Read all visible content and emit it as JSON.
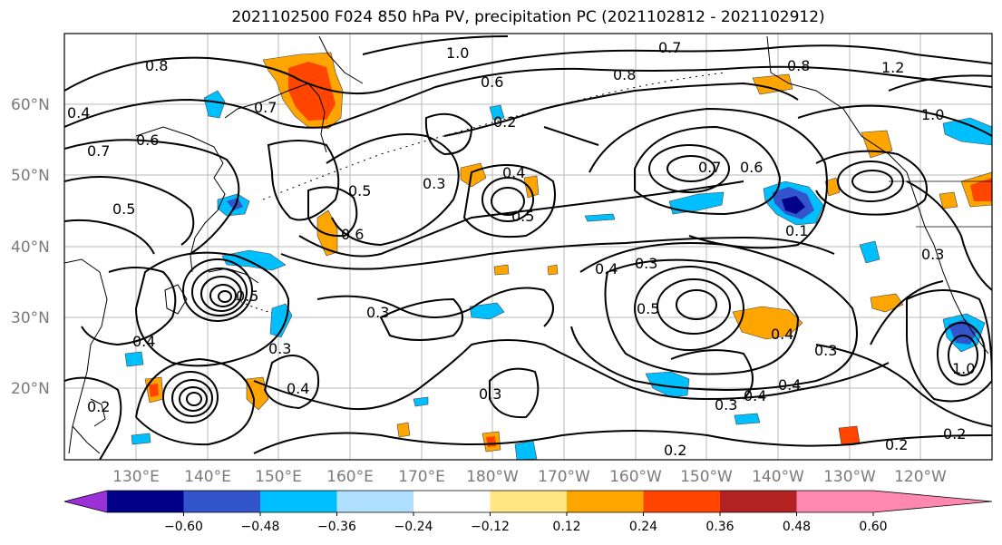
{
  "title": "2021102500 F024 850 hPa PV, precipitation PC (2021102812 - 2021102912)",
  "map": {
    "lat_labels": [
      "60°N",
      "50°N",
      "40°N",
      "30°N",
      "20°N"
    ],
    "lon_labels": [
      "130°E",
      "140°E",
      "150°E",
      "160°E",
      "170°E",
      "180°W",
      "170°W",
      "160°W",
      "150°W",
      "140°W",
      "130°W",
      "120°W"
    ],
    "contour_labels": [
      "0.8",
      "1.0",
      "0.7",
      "0.8",
      "0.6",
      "0.7",
      "0.8",
      "1.2",
      "0.4",
      "0.7",
      "0.6",
      "0.2",
      "0.5",
      "0.3",
      "0.4",
      "0.5",
      "0.6",
      "0.7",
      "0.6",
      "1.0",
      "0.5",
      "0.5",
      "0.3",
      "0.4",
      "0.3",
      "0.3",
      "0.5",
      "0.3",
      "0.4",
      "0.4",
      "0.3",
      "0.4",
      "0.3",
      "0.3",
      "0.2",
      "0.2",
      "0.2",
      "0.4",
      "0.2",
      "0.4",
      "0.1",
      "1.0"
    ]
  },
  "colorbar": {
    "ticks": [
      "−0.60",
      "−0.48",
      "−0.36",
      "−0.24",
      "−0.12",
      "0.12",
      "0.24",
      "0.36",
      "0.48",
      "0.60"
    ],
    "colors": [
      "#9b30d8",
      "#000088",
      "#3355cc",
      "#00bfff",
      "#b0e0ff",
      "#ffffff",
      "#ffe680",
      "#ffa500",
      "#ff4500",
      "#b22222",
      "#ff88b0"
    ]
  }
}
